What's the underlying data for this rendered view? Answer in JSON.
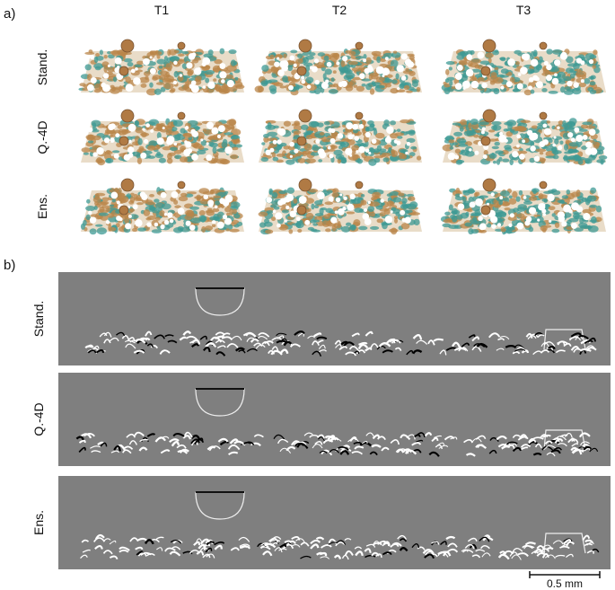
{
  "panel_a": {
    "label": "a)",
    "columns": [
      "T1",
      "T2",
      "T3"
    ],
    "rows": [
      "Stand.",
      "Q.-4D",
      "Ens."
    ]
  },
  "panel_b": {
    "label": "b)",
    "rows": [
      "Stand.",
      "Q.-4D",
      "Ens."
    ],
    "scale_bar": "0.5 mm"
  }
}
